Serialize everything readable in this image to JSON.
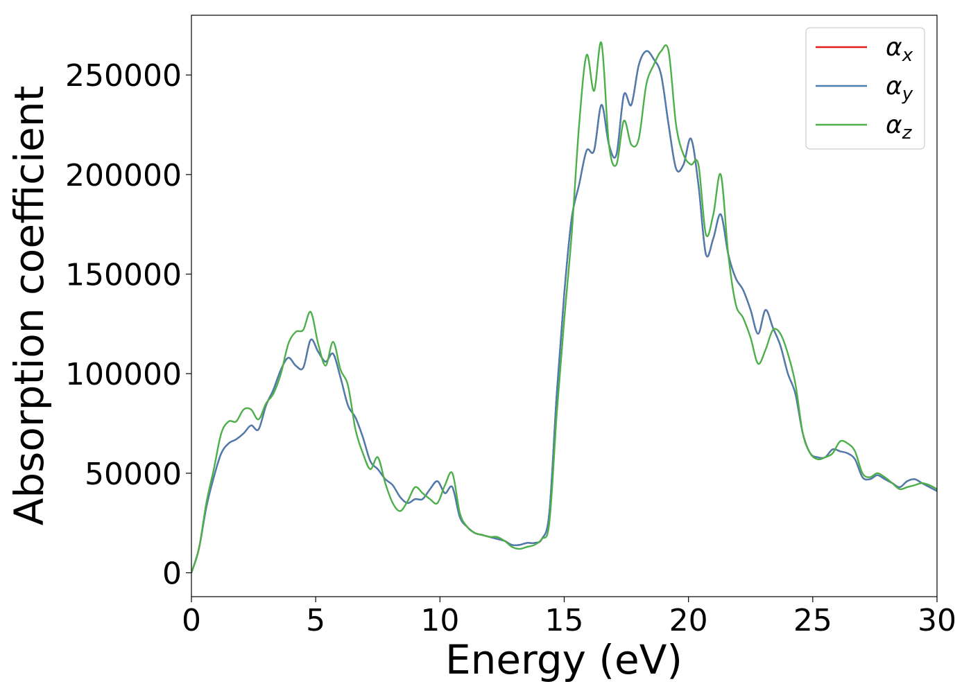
{
  "chart_data": {
    "type": "line",
    "title": "",
    "xlabel": "Energy (eV)",
    "ylabel": "Absorption coefficient",
    "xlim": [
      0,
      30
    ],
    "ylim": [
      -12000,
      280000
    ],
    "xticks": [
      0,
      5,
      10,
      15,
      20,
      25,
      30
    ],
    "yticks": [
      0,
      50000,
      100000,
      150000,
      200000,
      250000
    ],
    "grid": false,
    "legend_position": "top-right",
    "series": [
      {
        "name": "α_x",
        "symbol": "α",
        "subscript": "x",
        "color": "#e41a1c",
        "x": [
          0,
          0.3,
          0.6,
          0.9,
          1.2,
          1.5,
          1.8,
          2.1,
          2.4,
          2.7,
          3.0,
          3.3,
          3.6,
          3.9,
          4.2,
          4.5,
          4.8,
          5.1,
          5.4,
          5.7,
          6.0,
          6.3,
          6.6,
          6.9,
          7.2,
          7.5,
          7.8,
          8.1,
          8.4,
          8.7,
          9.0,
          9.3,
          9.6,
          9.9,
          10.2,
          10.5,
          10.8,
          11.1,
          11.4,
          11.7,
          12.0,
          12.3,
          12.6,
          12.9,
          13.2,
          13.5,
          13.8,
          14.1,
          14.4,
          14.7,
          15.0,
          15.3,
          15.6,
          15.9,
          16.2,
          16.5,
          16.8,
          17.1,
          17.4,
          17.7,
          18.0,
          18.3,
          18.6,
          18.9,
          19.2,
          19.5,
          19.8,
          20.1,
          20.4,
          20.7,
          21.0,
          21.3,
          21.6,
          21.9,
          22.2,
          22.5,
          22.8,
          23.1,
          23.4,
          23.7,
          24.0,
          24.3,
          24.6,
          24.9,
          25.2,
          25.5,
          25.8,
          26.1,
          26.4,
          26.7,
          27.0,
          27.3,
          27.6,
          27.9,
          28.2,
          28.5,
          28.8,
          29.1,
          29.4,
          29.7,
          30.0
        ],
        "values": [
          0,
          12000,
          33000,
          48000,
          60000,
          65000,
          67000,
          70000,
          74000,
          72000,
          84000,
          92000,
          102000,
          108000,
          104000,
          103000,
          117000,
          111000,
          106000,
          110000,
          98000,
          84000,
          78000,
          68000,
          56000,
          52000,
          47000,
          44000,
          38000,
          35000,
          37000,
          37000,
          42000,
          46000,
          40000,
          43000,
          28000,
          23000,
          20000,
          19000,
          18000,
          17000,
          16000,
          14000,
          14000,
          15000,
          15000,
          17000,
          30000,
          90000,
          140000,
          178000,
          195000,
          212000,
          212000,
          235000,
          215000,
          210000,
          240000,
          235000,
          255000,
          262000,
          258000,
          250000,
          225000,
          203000,
          205000,
          218000,
          195000,
          160000,
          168000,
          180000,
          160000,
          148000,
          142000,
          132000,
          120000,
          132000,
          123000,
          114000,
          100000,
          90000,
          70000,
          60000,
          58000,
          58000,
          62000,
          61000,
          60000,
          57000,
          48000,
          47000,
          49000,
          47000,
          45000,
          43000,
          46000,
          47000,
          45000,
          43000,
          41000
        ]
      },
      {
        "name": "α_y",
        "symbol": "α",
        "subscript": "y",
        "color": "#4a7eb0",
        "x": [
          0,
          0.3,
          0.6,
          0.9,
          1.2,
          1.5,
          1.8,
          2.1,
          2.4,
          2.7,
          3.0,
          3.3,
          3.6,
          3.9,
          4.2,
          4.5,
          4.8,
          5.1,
          5.4,
          5.7,
          6.0,
          6.3,
          6.6,
          6.9,
          7.2,
          7.5,
          7.8,
          8.1,
          8.4,
          8.7,
          9.0,
          9.3,
          9.6,
          9.9,
          10.2,
          10.5,
          10.8,
          11.1,
          11.4,
          11.7,
          12.0,
          12.3,
          12.6,
          12.9,
          13.2,
          13.5,
          13.8,
          14.1,
          14.4,
          14.7,
          15.0,
          15.3,
          15.6,
          15.9,
          16.2,
          16.5,
          16.8,
          17.1,
          17.4,
          17.7,
          18.0,
          18.3,
          18.6,
          18.9,
          19.2,
          19.5,
          19.8,
          20.1,
          20.4,
          20.7,
          21.0,
          21.3,
          21.6,
          21.9,
          22.2,
          22.5,
          22.8,
          23.1,
          23.4,
          23.7,
          24.0,
          24.3,
          24.6,
          24.9,
          25.2,
          25.5,
          25.8,
          26.1,
          26.4,
          26.7,
          27.0,
          27.3,
          27.6,
          27.9,
          28.2,
          28.5,
          28.8,
          29.1,
          29.4,
          29.7,
          30.0
        ],
        "values": [
          0,
          12000,
          33000,
          48000,
          60000,
          65000,
          67000,
          70000,
          74000,
          72000,
          84000,
          92000,
          102000,
          108000,
          104000,
          103000,
          117000,
          111000,
          106000,
          110000,
          98000,
          84000,
          78000,
          68000,
          56000,
          52000,
          47000,
          44000,
          38000,
          35000,
          37000,
          37000,
          42000,
          46000,
          40000,
          43000,
          28000,
          23000,
          20000,
          19000,
          18000,
          17000,
          16000,
          14000,
          14000,
          15000,
          15000,
          17000,
          30000,
          90000,
          140000,
          178000,
          195000,
          212000,
          212000,
          235000,
          215000,
          210000,
          240000,
          235000,
          255000,
          262000,
          258000,
          250000,
          225000,
          203000,
          205000,
          218000,
          195000,
          160000,
          168000,
          180000,
          160000,
          148000,
          142000,
          132000,
          120000,
          132000,
          123000,
          114000,
          100000,
          90000,
          70000,
          60000,
          58000,
          58000,
          62000,
          61000,
          60000,
          57000,
          48000,
          47000,
          49000,
          47000,
          45000,
          43000,
          46000,
          47000,
          45000,
          43000,
          41000
        ]
      },
      {
        "name": "α_z",
        "symbol": "α",
        "subscript": "z",
        "color": "#4daf4a",
        "x": [
          0,
          0.3,
          0.6,
          0.9,
          1.2,
          1.5,
          1.8,
          2.1,
          2.4,
          2.7,
          3.0,
          3.3,
          3.6,
          3.9,
          4.2,
          4.5,
          4.8,
          5.1,
          5.4,
          5.7,
          6.0,
          6.3,
          6.6,
          6.9,
          7.2,
          7.5,
          7.8,
          8.1,
          8.4,
          8.7,
          9.0,
          9.3,
          9.6,
          9.9,
          10.2,
          10.5,
          10.8,
          11.1,
          11.4,
          11.7,
          12.0,
          12.3,
          12.6,
          12.9,
          13.2,
          13.5,
          13.8,
          14.1,
          14.4,
          14.7,
          15.0,
          15.3,
          15.6,
          15.9,
          16.2,
          16.5,
          16.8,
          17.1,
          17.4,
          17.7,
          18.0,
          18.3,
          18.6,
          18.9,
          19.2,
          19.5,
          19.8,
          20.1,
          20.4,
          20.7,
          21.0,
          21.3,
          21.6,
          21.9,
          22.2,
          22.5,
          22.8,
          23.1,
          23.4,
          23.7,
          24.0,
          24.3,
          24.6,
          24.9,
          25.2,
          25.5,
          25.8,
          26.1,
          26.4,
          26.7,
          27.0,
          27.3,
          27.6,
          27.9,
          28.2,
          28.5,
          28.8,
          29.1,
          29.4,
          29.7,
          30.0
        ],
        "values": [
          0,
          12000,
          35000,
          52000,
          70000,
          76000,
          76000,
          82000,
          82000,
          77000,
          85000,
          90000,
          100000,
          115000,
          121000,
          122000,
          131000,
          115000,
          104000,
          116000,
          102000,
          94000,
          72000,
          60000,
          52000,
          58000,
          45000,
          35000,
          31000,
          36000,
          43000,
          40000,
          37000,
          35000,
          44000,
          50000,
          30000,
          23000,
          20000,
          19000,
          18000,
          18000,
          16000,
          13000,
          12000,
          13000,
          14000,
          17000,
          25000,
          80000,
          127000,
          170000,
          225000,
          260000,
          242000,
          266000,
          215000,
          205000,
          227000,
          215000,
          218000,
          245000,
          255000,
          262000,
          262000,
          225000,
          210000,
          205000,
          205000,
          170000,
          180000,
          200000,
          160000,
          135000,
          128000,
          118000,
          105000,
          112000,
          122000,
          120000,
          110000,
          95000,
          70000,
          60000,
          57000,
          58000,
          60000,
          66000,
          65000,
          61000,
          50000,
          48000,
          50000,
          48000,
          45000,
          42000,
          43000,
          44000,
          45000,
          44000,
          42000
        ]
      }
    ]
  }
}
